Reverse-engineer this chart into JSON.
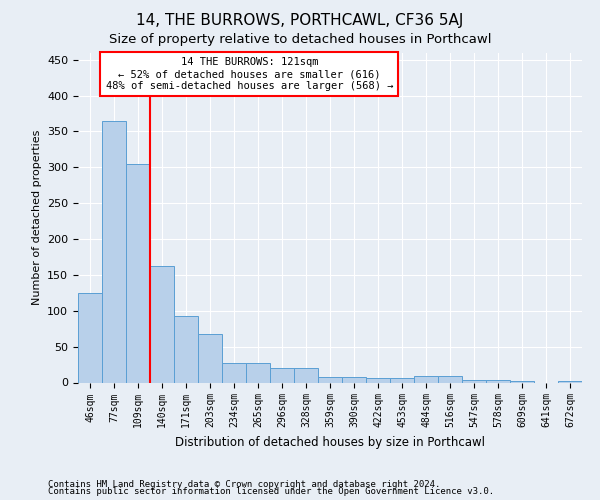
{
  "title": "14, THE BURROWS, PORTHCAWL, CF36 5AJ",
  "subtitle": "Size of property relative to detached houses in Porthcawl",
  "xlabel": "Distribution of detached houses by size in Porthcawl",
  "ylabel": "Number of detached properties",
  "footnote1": "Contains HM Land Registry data © Crown copyright and database right 2024.",
  "footnote2": "Contains public sector information licensed under the Open Government Licence v3.0.",
  "bin_labels": [
    "46sqm",
    "77sqm",
    "109sqm",
    "140sqm",
    "171sqm",
    "203sqm",
    "234sqm",
    "265sqm",
    "296sqm",
    "328sqm",
    "359sqm",
    "390sqm",
    "422sqm",
    "453sqm",
    "484sqm",
    "516sqm",
    "547sqm",
    "578sqm",
    "609sqm",
    "641sqm",
    "672sqm"
  ],
  "bin_values": [
    125,
    365,
    305,
    163,
    93,
    68,
    27,
    27,
    20,
    20,
    7,
    7,
    6,
    6,
    9,
    9,
    3,
    3,
    2,
    0,
    2
  ],
  "bar_color": "#b8d0ea",
  "bar_edge_color": "#5a9fd4",
  "vline_x_index": 2,
  "vline_color": "red",
  "annotation_line1": "14 THE BURROWS: 121sqm",
  "annotation_line2": "← 52% of detached houses are smaller (616)",
  "annotation_line3": "48% of semi-detached houses are larger (568) →",
  "annotation_box_color": "white",
  "annotation_box_edge_color": "red",
  "ylim": [
    0,
    460
  ],
  "bg_color": "#e8eef5",
  "plot_bg_color": "#e8eef5",
  "grid_color": "white",
  "title_fontsize": 11,
  "subtitle_fontsize": 9.5
}
